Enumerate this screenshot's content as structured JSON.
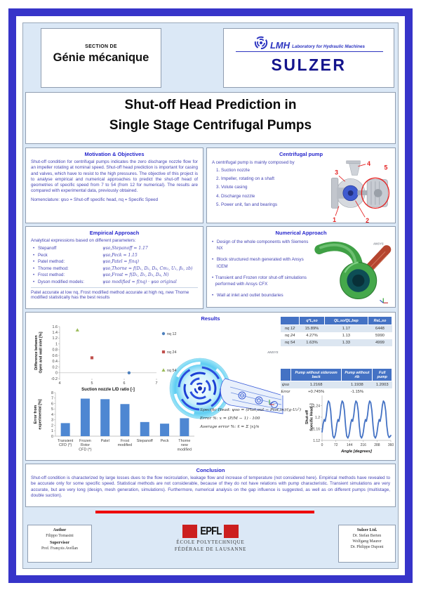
{
  "header": {
    "section_label": "SECTION DE",
    "section_name": "Génie mécanique",
    "lmh_word": "LMH",
    "lmh_sub": "Laboratory for Hydraulic Machines",
    "sulzer": "SULZER"
  },
  "title": {
    "line1": "Shut-off Head Prediction in",
    "line2": "Single Stage Centrifugal Pumps"
  },
  "motivation": {
    "heading": "Motivation & Objectives",
    "body": "Shut-off condition for centrifugal pumps indicates the zero discharge nozzle flow for an impeller rotating at nominal speed. Shut-off head prediction is important for casing and valves, which have to resist to the high pressures. The objective of this project is to analyse empirical and numerical approaches to predict the shut-off head of geometries of specific speed from 7 to 54 (from 12 for numerical). The results are compared with experimental data, previously obtained.",
    "nomenclature": "Nomenclature: ψso = Shut-off specific head, nq = Specific Speed"
  },
  "pump": {
    "heading": "Centrifugal pump",
    "intro": "A centrifugal pump is mainly composed by",
    "items": [
      "Suction nozzle",
      "Impeller, rotating on a shaft",
      "Volute casing",
      "Discharge nozzle",
      "Power unit, fan and bearings"
    ],
    "image_labels": [
      "1",
      "2",
      "3",
      "4",
      "5"
    ]
  },
  "empirical": {
    "heading": "Empirical Approach",
    "intro": "Analytical expressions based on different parameters:",
    "methods": [
      {
        "name": "Stepanoff",
        "formula": "ψso,Stepanoff = 1.17"
      },
      {
        "name": "Peck",
        "formula": "ψso,Peck = 1.15"
      },
      {
        "name": "Patel method:",
        "formula": "ψso,Patel = f(nq)"
      },
      {
        "name": "Thorne method:",
        "formula": "ψso,Thorne = f(D₁, D₂, D₄, Cm₁, U₁, β₂, zb)"
      },
      {
        "name": "Frost method:",
        "formula": "ψso,Frost = f(D₁, D₂, D₃, D₄, N)"
      },
      {
        "name": "Dyson modified models:",
        "formula": "ψso modified = f(nq) · ψso original"
      }
    ],
    "note": "Patel accurate at low nq, Frost modified method accurate at high nq, new Thorne modified statistically has the best results"
  },
  "numerical": {
    "heading": "Numerical Approach",
    "bullets": [
      "Design of the whole components with Siemens NX",
      "Block structured mesh generated with Ansys ICEM",
      "Transient and Frozen rotor shut-off simulations performed with Ansys CFX",
      "Wall at inlet and outlet boundaries"
    ],
    "ansys_label": "ANSYS"
  },
  "results": {
    "heading": "Results",
    "ansys_label": "ANSYS",
    "formulas": [
      "Specific Head: ψso = (Ptot,out − Ptot,in)/(g·U₂²)",
      "Error %: x = (P/M − 1) · 100",
      "Average error %: x̄ = Σ |x|/n"
    ],
    "table1": {
      "headers": [
        "",
        "q*L,so",
        "QL,so/QL,bep",
        "ReL,so"
      ],
      "rows": [
        [
          "nq 12",
          "15.89%",
          "1.17",
          "6448"
        ],
        [
          "nq 24",
          "4.27%",
          "1.13",
          "5990"
        ],
        [
          "nq 54",
          "1.63%",
          "1.33",
          "4999"
        ]
      ]
    },
    "table2": {
      "headers": [
        "",
        "Pump without sideroom back",
        "Pump without rib",
        "Full pump"
      ],
      "rows": [
        [
          "ψso",
          "1.2168",
          "1.1938",
          "1.2003"
        ],
        [
          "Error",
          "+0.745%",
          "-1.15%",
          ""
        ]
      ]
    }
  },
  "chart_data": [
    {
      "type": "scatter",
      "title": "",
      "xlabel": "Suction nozzle L/D ratio [-]",
      "ylabel": "Difference between\nOpen and wall inlet [%]",
      "xlim": [
        4,
        7
      ],
      "ylim": [
        -0.2,
        1.6
      ],
      "xticks": [
        4,
        5,
        6,
        7
      ],
      "yticks": [
        -0.2,
        0,
        0.2,
        0.4,
        0.6,
        0.8,
        1,
        1.2,
        1.4,
        1.6
      ],
      "legend_position": "right",
      "series": [
        {
          "name": "nq 12",
          "marker": "circle",
          "color": "#4f81bd",
          "points": [
            [
              6.15,
              0
            ]
          ]
        },
        {
          "name": "nq 24",
          "marker": "square",
          "color": "#c0504d",
          "points": [
            [
              5.0,
              0.52
            ]
          ]
        },
        {
          "name": "nq 54",
          "marker": "triangle",
          "color": "#9bbb59",
          "points": [
            [
              4.55,
              1.48
            ]
          ]
        }
      ]
    },
    {
      "type": "bar",
      "title": "",
      "xlabel": "",
      "ylabel": "Error from\nexperimental [%]",
      "ylim": [
        0,
        8
      ],
      "yticks": [
        0,
        1,
        2,
        3,
        4,
        5,
        6,
        7,
        8
      ],
      "categories": [
        "Transient\nCFD (*)",
        "Frozen\nRotor\nCFD (*)",
        "Patel",
        "Frost\nmodified",
        "Stepanoff",
        "Peck",
        "Thorne\nnew\nmodified"
      ],
      "values": [
        2.4,
        6.9,
        6.8,
        5.9,
        2.6,
        2.3,
        3.3
      ],
      "color": "#4e87d2"
    },
    {
      "type": "line",
      "title": "",
      "xlabel": "Angle [degrees]",
      "ylabel": "Shut-off\nSpecific Head[-]",
      "xlim": [
        0,
        360
      ],
      "ylim": [
        1.12,
        1.28
      ],
      "xticks": [
        0,
        72,
        144,
        216,
        288,
        360
      ],
      "yticks": [
        1.12,
        1.16,
        1.2,
        1.24,
        1.28
      ],
      "color": "#4472c4",
      "points": [
        [
          0,
          1.149
        ],
        [
          6,
          1.178
        ],
        [
          11,
          1.192
        ],
        [
          16,
          1.186
        ],
        [
          22,
          1.207
        ],
        [
          28,
          1.242
        ],
        [
          33,
          1.256
        ],
        [
          39,
          1.25
        ],
        [
          45,
          1.222
        ],
        [
          51,
          1.17
        ],
        [
          57,
          1.135
        ],
        [
          63,
          1.128
        ],
        [
          68,
          1.136
        ],
        [
          72,
          1.149
        ],
        [
          78,
          1.178
        ],
        [
          83,
          1.192
        ],
        [
          88,
          1.186
        ],
        [
          94,
          1.207
        ],
        [
          100,
          1.242
        ],
        [
          105,
          1.256
        ],
        [
          111,
          1.25
        ],
        [
          117,
          1.222
        ],
        [
          123,
          1.17
        ],
        [
          129,
          1.135
        ],
        [
          135,
          1.128
        ],
        [
          140,
          1.136
        ],
        [
          144,
          1.149
        ],
        [
          150,
          1.178
        ],
        [
          155,
          1.192
        ],
        [
          160,
          1.186
        ],
        [
          166,
          1.207
        ],
        [
          172,
          1.242
        ],
        [
          177,
          1.256
        ],
        [
          183,
          1.25
        ],
        [
          189,
          1.222
        ],
        [
          195,
          1.17
        ],
        [
          201,
          1.135
        ],
        [
          207,
          1.128
        ],
        [
          212,
          1.136
        ],
        [
          216,
          1.149
        ],
        [
          222,
          1.178
        ],
        [
          227,
          1.192
        ],
        [
          232,
          1.186
        ],
        [
          238,
          1.207
        ],
        [
          244,
          1.242
        ],
        [
          249,
          1.256
        ],
        [
          255,
          1.25
        ],
        [
          261,
          1.222
        ],
        [
          267,
          1.17
        ],
        [
          273,
          1.135
        ],
        [
          279,
          1.128
        ],
        [
          284,
          1.136
        ],
        [
          288,
          1.149
        ],
        [
          294,
          1.178
        ],
        [
          299,
          1.192
        ],
        [
          304,
          1.186
        ],
        [
          310,
          1.207
        ],
        [
          316,
          1.242
        ],
        [
          321,
          1.256
        ],
        [
          327,
          1.25
        ],
        [
          333,
          1.222
        ],
        [
          339,
          1.17
        ],
        [
          345,
          1.14
        ],
        [
          351,
          1.13
        ],
        [
          356,
          1.133
        ],
        [
          360,
          1.137
        ]
      ]
    }
  ],
  "conclusion": {
    "heading": "Conclusion",
    "body": "Shut-off condition is characterized by large losses dues to the flow recirculation, leakage flow and  increase of temperature (not considered here). Empirical methods have revealed to be accurate only for some specific speed. Statistical methods are not considerable, because of they do not have relations with pump characteristic. Transient simulations are very accurate, but are very long (design, mesh generation, simulations). Furthermore, numerical analysis on the gap influence is suggested, as well as on different pumps (multistage, double suction)."
  },
  "footer": {
    "author_label": "Author",
    "author": "Filippo Tomasini",
    "supervisor_label": "Supervisor",
    "supervisor": "Prof. François Avellan",
    "epfl_word": "EPFL",
    "epfl_line1": "ÉCOLE POLYTECHNIQUE",
    "epfl_line2": "FÉDÉRALE DE LAUSANNE",
    "sulzer_heading": "Sulzer Ltd.",
    "sulzer_names": [
      "Dr. Stefan Berten",
      "Wolfgang Maurer",
      "Dr. Philippe Dupont"
    ]
  },
  "colors": {
    "frame_blue": "#3734c9",
    "panel_bg": "#dbe8f6",
    "heading_blue": "#2727cc",
    "body_blue": "#4444b4",
    "table_header": "#4472c4",
    "bar_blue": "#4e87d2",
    "red_accent": "#ee0000",
    "sulzer_navy": "#14148c"
  }
}
